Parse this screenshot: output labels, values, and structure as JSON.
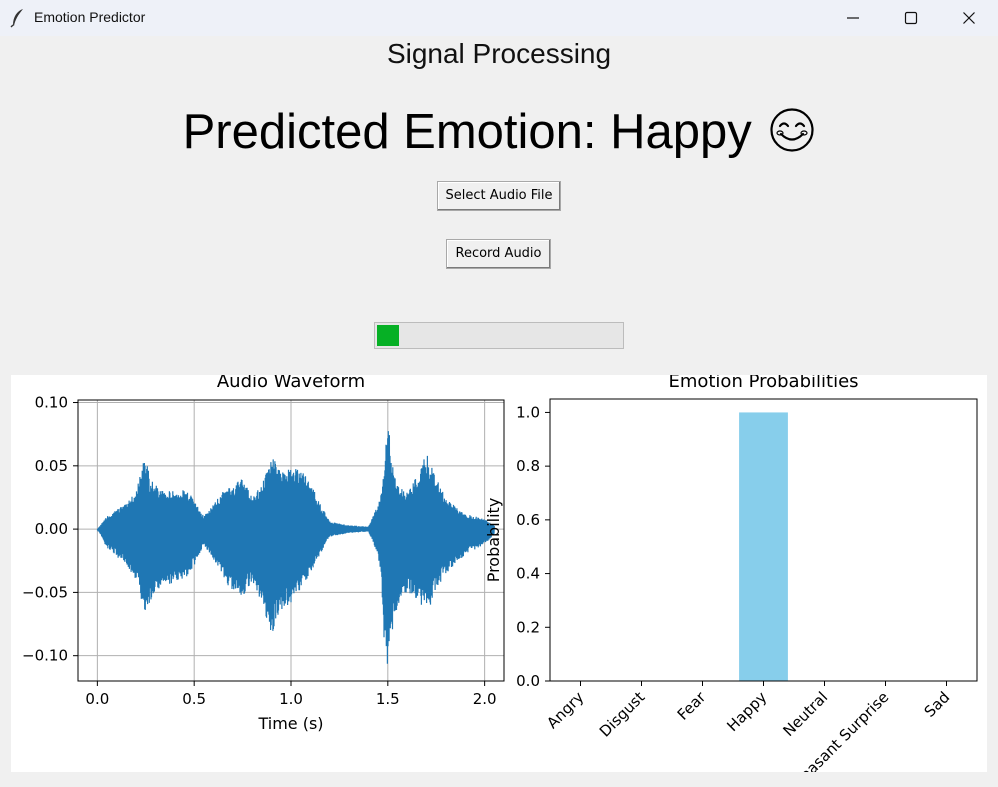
{
  "window": {
    "title": "Emotion Predictor",
    "icon": "feather-icon",
    "controls": [
      "minimize-icon",
      "maximize-icon",
      "close-icon"
    ]
  },
  "header": {
    "app_title": "Signal Processing",
    "prediction_text": "Predicted Emotion: Happy",
    "prediction_emoji": "smiling-face-icon"
  },
  "buttons": {
    "select_audio": "Select Audio File",
    "record_audio": "Record Audio"
  },
  "progress": {
    "value_percent": 9,
    "color": "#06b025"
  },
  "chart_data": [
    {
      "type": "line",
      "title": "Audio Waveform",
      "xlabel": "Time (s)",
      "ylabel": "",
      "xlim": [
        -0.1,
        2.1
      ],
      "ylim": [
        -0.12,
        0.102
      ],
      "x_ticks": [
        0.0,
        0.5,
        1.0,
        1.5,
        2.0
      ],
      "x_tick_labels": [
        "0.0",
        "0.5",
        "1.0",
        "1.5",
        "2.0"
      ],
      "y_ticks": [
        0.1,
        0.05,
        0.0,
        -0.05,
        -0.1
      ],
      "y_tick_labels": [
        "0.10",
        "0.05",
        "0.00",
        "−0.05",
        "−0.10"
      ],
      "grid": true,
      "color": "#1f77b4",
      "envelope": {
        "t": [
          0.0,
          0.05,
          0.1,
          0.15,
          0.2,
          0.24,
          0.25,
          0.27,
          0.3,
          0.35,
          0.4,
          0.45,
          0.5,
          0.55,
          0.6,
          0.65,
          0.7,
          0.75,
          0.8,
          0.85,
          0.88,
          0.9,
          0.93,
          0.96,
          1.0,
          1.04,
          1.08,
          1.12,
          1.15,
          1.2,
          1.3,
          1.4,
          1.45,
          1.47,
          1.48,
          1.5,
          1.52,
          1.55,
          1.6,
          1.65,
          1.7,
          1.72,
          1.75,
          1.8,
          1.9,
          2.0,
          2.05
        ],
        "upper": [
          0.0,
          0.01,
          0.016,
          0.02,
          0.03,
          0.055,
          0.06,
          0.04,
          0.035,
          0.03,
          0.03,
          0.032,
          0.025,
          0.01,
          0.02,
          0.03,
          0.035,
          0.04,
          0.025,
          0.035,
          0.05,
          0.057,
          0.052,
          0.045,
          0.05,
          0.048,
          0.042,
          0.03,
          0.02,
          0.006,
          0.003,
          0.002,
          0.02,
          0.03,
          0.05,
          0.092,
          0.055,
          0.035,
          0.03,
          0.042,
          0.06,
          0.052,
          0.04,
          0.025,
          0.012,
          0.008,
          0.003
        ],
        "lower": [
          0.0,
          -0.015,
          -0.022,
          -0.028,
          -0.04,
          -0.065,
          -0.072,
          -0.06,
          -0.05,
          -0.045,
          -0.042,
          -0.04,
          -0.03,
          -0.012,
          -0.025,
          -0.04,
          -0.05,
          -0.055,
          -0.04,
          -0.06,
          -0.075,
          -0.084,
          -0.07,
          -0.062,
          -0.06,
          -0.05,
          -0.04,
          -0.03,
          -0.02,
          -0.006,
          -0.003,
          -0.002,
          -0.02,
          -0.05,
          -0.09,
          -0.11,
          -0.085,
          -0.06,
          -0.05,
          -0.055,
          -0.065,
          -0.06,
          -0.048,
          -0.035,
          -0.02,
          -0.012,
          -0.004
        ]
      }
    },
    {
      "type": "bar",
      "title": "Emotion Probabilities",
      "xlabel": "",
      "ylabel": "Probability",
      "categories": [
        "Angry",
        "Disgust",
        "Fear",
        "Happy",
        "Neutral",
        "Pleasant Surprise",
        "Sad"
      ],
      "values": [
        0.0,
        0.0,
        0.0,
        1.0,
        0.0,
        0.0,
        0.0
      ],
      "ylim": [
        0,
        1.05
      ],
      "y_ticks": [
        0.0,
        0.2,
        0.4,
        0.6,
        0.8,
        1.0
      ],
      "y_tick_labels": [
        "0.0",
        "0.2",
        "0.4",
        "0.6",
        "0.8",
        "1.0"
      ],
      "grid": false,
      "color": "#87ceeb"
    }
  ]
}
